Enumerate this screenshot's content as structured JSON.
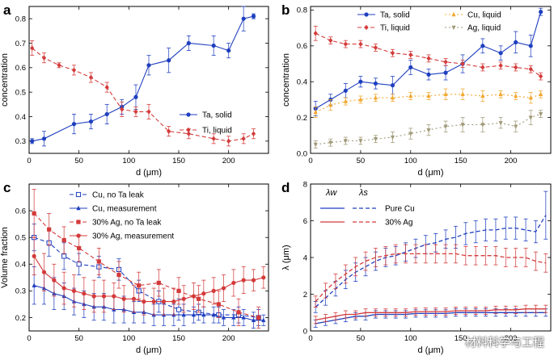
{
  "watermark": "材料科学与工程",
  "chart_data": [
    {
      "panel": "a",
      "type": "line",
      "xlabel": "d (μm)",
      "ylabel": "concentration",
      "xlim": [
        0,
        240
      ],
      "ylim": [
        0.25,
        0.85
      ],
      "xticks": [
        0,
        50,
        100,
        150,
        200
      ],
      "yticks": [
        0.3,
        0.4,
        0.5,
        0.6,
        0.7,
        0.8
      ],
      "legend_position": "bottom-right",
      "series": [
        {
          "name": "Ta, solid",
          "color": "#1f3fbf",
          "dash": "",
          "marker": "circle",
          "err_cap": true,
          "x": [
            3,
            15,
            45,
            62,
            78,
            93,
            107,
            120,
            140,
            160,
            185,
            200,
            215,
            225
          ],
          "y": [
            0.3,
            0.31,
            0.37,
            0.38,
            0.41,
            0.44,
            0.48,
            0.61,
            0.63,
            0.7,
            0.69,
            0.67,
            0.8,
            0.81
          ],
          "err": [
            0.01,
            0.03,
            0.04,
            0.03,
            0.04,
            0.03,
            0.05,
            0.04,
            0.05,
            0.03,
            0.04,
            0.03,
            0.05,
            0.01
          ]
        },
        {
          "name": "Ti, liquid",
          "color": "#d43a3a",
          "dash": "5,3",
          "marker": "diamond",
          "err_cap": true,
          "x": [
            3,
            15,
            30,
            45,
            62,
            78,
            93,
            107,
            120,
            140,
            160,
            185,
            200,
            215,
            225
          ],
          "y": [
            0.68,
            0.64,
            0.61,
            0.59,
            0.56,
            0.52,
            0.43,
            0.42,
            0.42,
            0.34,
            0.33,
            0.31,
            0.3,
            0.31,
            0.33
          ],
          "err": [
            0.03,
            0.02,
            0.01,
            0.02,
            0.02,
            0.02,
            0.03,
            0.02,
            0.03,
            0.02,
            0.02,
            0.02,
            0.02,
            0.02,
            0.02
          ]
        }
      ]
    },
    {
      "panel": "b",
      "type": "line",
      "xlabel": "d (μm)",
      "ylabel": "concentration",
      "xlim": [
        0,
        240
      ],
      "ylim": [
        0.0,
        0.82
      ],
      "xticks": [
        0,
        50,
        100,
        150,
        200
      ],
      "yticks": [
        0.0,
        0.2,
        0.4,
        0.6,
        0.8
      ],
      "legend_position": "top",
      "series": [
        {
          "name": "Ta, solid",
          "color": "#1f3fbf",
          "dash": "",
          "marker": "circle",
          "err_cap": true,
          "x": [
            5,
            20,
            35,
            50,
            65,
            82,
            100,
            118,
            135,
            152,
            172,
            190,
            205,
            220,
            230
          ],
          "y": [
            0.25,
            0.3,
            0.35,
            0.4,
            0.39,
            0.38,
            0.48,
            0.44,
            0.45,
            0.5,
            0.6,
            0.56,
            0.62,
            0.6,
            0.79
          ],
          "err": [
            0.04,
            0.03,
            0.04,
            0.03,
            0.03,
            0.05,
            0.04,
            0.03,
            0.04,
            0.05,
            0.04,
            0.04,
            0.06,
            0.06,
            0.02
          ]
        },
        {
          "name": "Ti, liquid",
          "color": "#d43a3a",
          "dash": "5,3",
          "marker": "diamond",
          "err_cap": true,
          "x": [
            5,
            20,
            35,
            50,
            65,
            82,
            100,
            118,
            135,
            152,
            172,
            190,
            205,
            220,
            230
          ],
          "y": [
            0.67,
            0.63,
            0.61,
            0.61,
            0.59,
            0.56,
            0.55,
            0.53,
            0.51,
            0.5,
            0.48,
            0.49,
            0.48,
            0.47,
            0.43
          ],
          "err": [
            0.04,
            0.02,
            0.02,
            0.02,
            0.02,
            0.02,
            0.02,
            0.02,
            0.02,
            0.02,
            0.02,
            0.02,
            0.02,
            0.02,
            0.02
          ]
        },
        {
          "name": "Cu, liquid",
          "color": "#f0a830",
          "dash": "2,3",
          "marker": "triangle-up",
          "err_cap": true,
          "x": [
            5,
            20,
            35,
            50,
            65,
            82,
            100,
            118,
            135,
            152,
            172,
            190,
            205,
            220,
            230
          ],
          "y": [
            0.23,
            0.27,
            0.29,
            0.3,
            0.31,
            0.31,
            0.32,
            0.32,
            0.33,
            0.33,
            0.32,
            0.33,
            0.32,
            0.31,
            0.33
          ],
          "err": [
            0.03,
            0.03,
            0.02,
            0.02,
            0.02,
            0.02,
            0.02,
            0.02,
            0.03,
            0.03,
            0.03,
            0.02,
            0.02,
            0.03,
            0.02
          ]
        },
        {
          "name": "Ag, liquid",
          "color": "#a09a78",
          "dash": "2,3",
          "marker": "triangle-down",
          "err_cap": true,
          "x": [
            5,
            20,
            35,
            50,
            65,
            82,
            100,
            118,
            135,
            152,
            172,
            190,
            205,
            220,
            230
          ],
          "y": [
            0.05,
            0.06,
            0.07,
            0.07,
            0.08,
            0.09,
            0.11,
            0.13,
            0.15,
            0.16,
            0.16,
            0.17,
            0.15,
            0.2,
            0.22
          ],
          "err": [
            0.02,
            0.02,
            0.02,
            0.02,
            0.02,
            0.03,
            0.03,
            0.03,
            0.03,
            0.04,
            0.04,
            0.03,
            0.03,
            0.04,
            0.02
          ]
        }
      ]
    },
    {
      "panel": "c",
      "type": "line",
      "xlabel": "d (μm)",
      "ylabel": "Volume fraction",
      "xlim": [
        0,
        240
      ],
      "ylim": [
        0.15,
        0.7
      ],
      "xticks": [
        0,
        50,
        100,
        150,
        200
      ],
      "yticks": [
        0.2,
        0.3,
        0.4,
        0.5,
        0.6
      ],
      "legend_position": "top-right",
      "series": [
        {
          "name": "Cu, no Ta leak",
          "color": "#1f3fbf",
          "dash": "5,3",
          "marker": "square-open",
          "err_cap": true,
          "x": [
            5,
            20,
            35,
            50,
            70,
            90,
            110,
            130,
            150,
            170,
            190,
            210,
            230
          ],
          "y": [
            0.5,
            0.48,
            0.43,
            0.4,
            0.39,
            0.38,
            0.3,
            0.26,
            0.23,
            0.22,
            0.21,
            0.21,
            0.2
          ],
          "err": [
            0.05,
            0.05,
            0.05,
            0.04,
            0.04,
            0.04,
            0.04,
            0.04,
            0.04,
            0.03,
            0.03,
            0.03,
            0.03
          ]
        },
        {
          "name": "Cu, measurement",
          "color": "#1f3fbf",
          "dash": "",
          "marker": "triangle-up",
          "err_cap": true,
          "x": [
            5,
            15,
            25,
            35,
            45,
            55,
            65,
            75,
            85,
            95,
            105,
            115,
            125,
            135,
            145,
            155,
            165,
            175,
            185,
            195,
            205,
            215,
            225,
            235
          ],
          "y": [
            0.32,
            0.31,
            0.29,
            0.28,
            0.26,
            0.25,
            0.24,
            0.24,
            0.23,
            0.23,
            0.22,
            0.22,
            0.21,
            0.21,
            0.21,
            0.21,
            0.21,
            0.21,
            0.21,
            0.2,
            0.2,
            0.2,
            0.19,
            0.19
          ],
          "err": [
            0.07,
            0.06,
            0.06,
            0.05,
            0.05,
            0.05,
            0.05,
            0.05,
            0.05,
            0.05,
            0.04,
            0.04,
            0.04,
            0.04,
            0.04,
            0.04,
            0.03,
            0.03,
            0.03,
            0.03,
            0.03,
            0.03,
            0.03,
            0.02
          ]
        },
        {
          "name": "30% Ag, no Ta leak",
          "color": "#d43a3a",
          "dash": "5,3",
          "marker": "square",
          "err_cap": true,
          "x": [
            5,
            20,
            35,
            50,
            70,
            90,
            110,
            130,
            150,
            170,
            190,
            210,
            230
          ],
          "y": [
            0.59,
            0.53,
            0.49,
            0.46,
            0.41,
            0.36,
            0.32,
            0.33,
            0.3,
            0.27,
            0.25,
            0.22,
            0.2
          ],
          "err": [
            0.09,
            0.06,
            0.05,
            0.05,
            0.05,
            0.05,
            0.05,
            0.05,
            0.05,
            0.05,
            0.05,
            0.05,
            0.04
          ]
        },
        {
          "name": "30% Ag, measurement",
          "color": "#d43a3a",
          "dash": "",
          "marker": "circle",
          "err_cap": true,
          "x": [
            5,
            15,
            25,
            35,
            45,
            55,
            65,
            75,
            85,
            95,
            105,
            115,
            125,
            135,
            145,
            155,
            165,
            175,
            185,
            195,
            205,
            215,
            225,
            235
          ],
          "y": [
            0.43,
            0.37,
            0.34,
            0.31,
            0.3,
            0.29,
            0.28,
            0.28,
            0.28,
            0.27,
            0.27,
            0.26,
            0.26,
            0.26,
            0.26,
            0.27,
            0.28,
            0.29,
            0.3,
            0.31,
            0.33,
            0.34,
            0.34,
            0.35
          ],
          "err": [
            0.07,
            0.07,
            0.06,
            0.06,
            0.06,
            0.06,
            0.06,
            0.06,
            0.05,
            0.05,
            0.05,
            0.05,
            0.05,
            0.05,
            0.05,
            0.05,
            0.05,
            0.05,
            0.05,
            0.05,
            0.05,
            0.05,
            0.04,
            0.04
          ]
        }
      ]
    },
    {
      "panel": "d",
      "type": "line",
      "xlabel": "d (μm)",
      "ylabel": "λ (μm)",
      "xlim": [
        0,
        240
      ],
      "ylim": [
        0,
        8
      ],
      "xticks": [
        0,
        50,
        100,
        150,
        200
      ],
      "yticks": [
        0,
        2,
        4,
        6,
        8
      ],
      "legend_position": "top-left",
      "legend_columns": [
        "λw",
        "λs"
      ],
      "series": [
        {
          "name": "Pure Cu λw",
          "legend_row": "Pure Cu",
          "color": "#1f3fbf",
          "dash": "",
          "marker": "",
          "err_cap": true,
          "x": [
            5,
            15,
            25,
            35,
            45,
            55,
            65,
            75,
            85,
            95,
            105,
            115,
            125,
            135,
            145,
            155,
            165,
            175,
            185,
            195,
            205,
            215,
            225,
            235
          ],
          "y": [
            0.4,
            0.5,
            0.6,
            0.7,
            0.8,
            0.8,
            0.9,
            0.9,
            0.9,
            0.9,
            0.95,
            0.95,
            0.95,
            0.95,
            1.0,
            1.0,
            1.0,
            1.0,
            1.0,
            1.0,
            1.0,
            1.0,
            1.0,
            1.0
          ],
          "err": [
            0.2,
            0.2,
            0.2,
            0.2,
            0.2,
            0.2,
            0.2,
            0.2,
            0.2,
            0.2,
            0.2,
            0.2,
            0.2,
            0.2,
            0.2,
            0.2,
            0.2,
            0.2,
            0.2,
            0.2,
            0.2,
            0.2,
            0.2,
            0.2
          ]
        },
        {
          "name": "Pure Cu λs",
          "legend_row": "Pure Cu",
          "color": "#1f3fbf",
          "dash": "5,3",
          "marker": "",
          "err_cap": true,
          "x": [
            5,
            15,
            25,
            35,
            45,
            55,
            65,
            75,
            85,
            95,
            105,
            115,
            125,
            135,
            145,
            155,
            165,
            175,
            185,
            195,
            205,
            215,
            225,
            235
          ],
          "y": [
            1.3,
            1.8,
            2.3,
            2.8,
            3.2,
            3.5,
            3.8,
            4.0,
            4.1,
            4.3,
            4.5,
            4.7,
            4.8,
            5.0,
            5.1,
            5.3,
            5.4,
            5.5,
            5.5,
            5.6,
            5.6,
            5.5,
            5.4,
            6.3
          ],
          "err": [
            0.3,
            0.4,
            0.4,
            0.5,
            0.5,
            0.5,
            0.5,
            0.5,
            0.5,
            0.5,
            0.5,
            0.5,
            0.5,
            0.5,
            0.6,
            0.6,
            0.6,
            0.6,
            0.6,
            0.6,
            0.6,
            0.6,
            0.6,
            1.3
          ]
        },
        {
          "name": "30% Ag λw",
          "legend_row": "30% Ag",
          "color": "#d43a3a",
          "dash": "",
          "marker": "",
          "err_cap": true,
          "x": [
            5,
            15,
            25,
            35,
            45,
            55,
            65,
            75,
            85,
            95,
            105,
            115,
            125,
            135,
            145,
            155,
            165,
            175,
            185,
            195,
            205,
            215,
            225,
            235
          ],
          "y": [
            0.6,
            0.7,
            0.8,
            0.9,
            0.9,
            1.0,
            1.0,
            1.0,
            1.0,
            1.0,
            1.05,
            1.05,
            1.05,
            1.05,
            1.1,
            1.1,
            1.1,
            1.1,
            1.15,
            1.15,
            1.15,
            1.2,
            1.2,
            1.2
          ],
          "err": [
            0.2,
            0.2,
            0.2,
            0.2,
            0.2,
            0.2,
            0.2,
            0.2,
            0.2,
            0.2,
            0.2,
            0.2,
            0.2,
            0.2,
            0.2,
            0.2,
            0.2,
            0.2,
            0.2,
            0.2,
            0.2,
            0.2,
            0.2,
            0.2
          ]
        },
        {
          "name": "30% Ag λs",
          "legend_row": "30% Ag",
          "color": "#d43a3a",
          "dash": "5,3",
          "marker": "",
          "err_cap": true,
          "x": [
            5,
            15,
            25,
            35,
            45,
            55,
            65,
            75,
            85,
            95,
            105,
            115,
            125,
            135,
            145,
            155,
            165,
            175,
            185,
            195,
            205,
            215,
            225,
            235
          ],
          "y": [
            1.6,
            2.2,
            2.7,
            3.1,
            3.5,
            3.8,
            4.0,
            4.1,
            4.2,
            4.2,
            4.2,
            4.2,
            4.2,
            4.2,
            4.2,
            4.1,
            4.1,
            4.1,
            4.1,
            4.0,
            4.0,
            4.0,
            3.8,
            3.7
          ],
          "err": [
            0.3,
            0.4,
            0.4,
            0.5,
            0.5,
            0.5,
            0.5,
            0.5,
            0.5,
            0.5,
            0.5,
            0.5,
            0.5,
            0.5,
            0.5,
            0.5,
            0.5,
            0.5,
            0.5,
            0.5,
            0.5,
            0.5,
            0.5,
            0.5
          ]
        }
      ]
    }
  ]
}
